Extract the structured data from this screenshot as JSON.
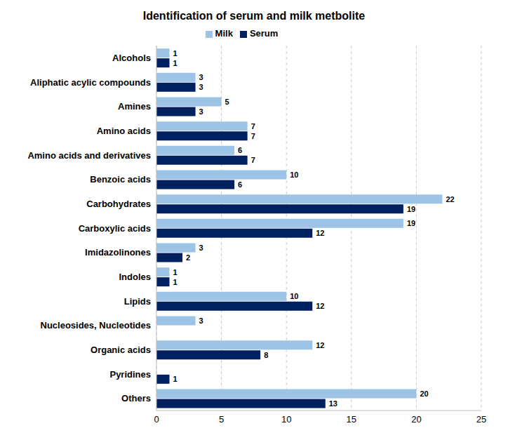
{
  "chart_data": {
    "type": "bar",
    "title": "Identification of serum and milk metbolite",
    "orientation": "horizontal",
    "categories": [
      "Alcohols",
      "Aliphatic acylic compounds",
      "Amines",
      "Amino acids",
      "Amino acids and derivatives",
      "Benzoic acids",
      "Carbohydrates",
      "Carboxylic acids",
      "Imidazolinones",
      "Indoles",
      "Lipids",
      "Nucleosides, Nucleotides",
      "Organic acids",
      "Pyridines",
      "Others"
    ],
    "series": [
      {
        "name": "Milk",
        "color": "#9dc3e6",
        "values": [
          1,
          3,
          5,
          7,
          6,
          10,
          22,
          19,
          3,
          1,
          10,
          3,
          12,
          null,
          20
        ]
      },
      {
        "name": "Serum",
        "color": "#002060",
        "values": [
          1,
          3,
          3,
          7,
          7,
          6,
          19,
          12,
          2,
          1,
          12,
          null,
          8,
          1,
          13
        ]
      }
    ],
    "xlim": [
      0,
      25
    ],
    "xticks": [
      0,
      5,
      10,
      15,
      20,
      25
    ],
    "grid": true,
    "legend": "top",
    "data_labels": true
  }
}
